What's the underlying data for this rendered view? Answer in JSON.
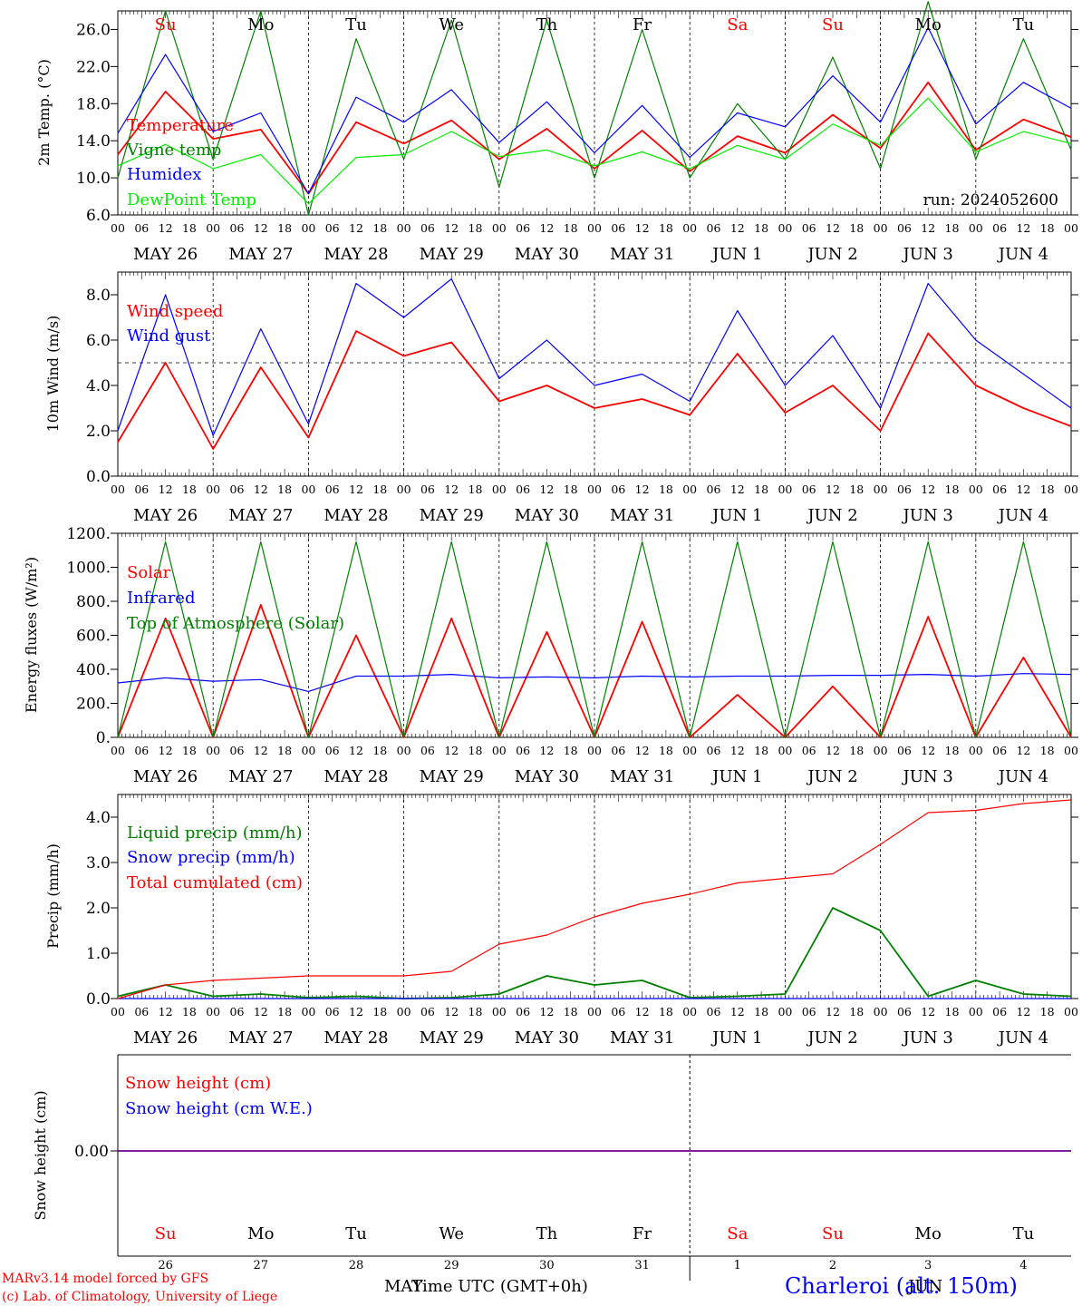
{
  "chart_data": [
    {
      "type": "line",
      "ylabel": "2m Temp. (°C)",
      "ylim": [
        6.0,
        28.0
      ],
      "yticks": [
        "6.0",
        "10.0",
        "14.0",
        "18.0",
        "22.0",
        "26.0"
      ],
      "annotation": "run: 2024052600",
      "legend": "top-left",
      "x_hours": [
        0,
        12,
        24,
        36,
        48,
        60,
        72,
        84,
        96,
        108,
        120,
        132,
        144,
        156,
        168,
        180,
        192,
        204,
        216,
        228,
        240
      ],
      "series": [
        {
          "name": "Temperature",
          "values": [
            12.5,
            19.3,
            14.2,
            15.2,
            8.3,
            16.0,
            13.7,
            16.2,
            12.0,
            15.3,
            11.0,
            15.1,
            10.7,
            14.5,
            12.7,
            16.8,
            13.2,
            20.3,
            13.0,
            16.3,
            14.4
          ]
        },
        {
          "name": "Vigne temp",
          "values": [
            10.0,
            28.0,
            12.0,
            28.0,
            6.0,
            25.0,
            12.0,
            27.0,
            9.0,
            27.0,
            10.0,
            26.0,
            10.0,
            18.0,
            12.0,
            23.0,
            11.0,
            29.0,
            12.0,
            25.0,
            13.0
          ]
        },
        {
          "name": "Humidex",
          "values": [
            14.8,
            23.3,
            15.0,
            17.0,
            8.3,
            18.7,
            16.0,
            19.5,
            13.8,
            18.2,
            12.7,
            17.8,
            12.2,
            17.0,
            15.5,
            21.0,
            16.0,
            26.2,
            15.8,
            20.3,
            17.5
          ]
        },
        {
          "name": "DewPoint Temp",
          "values": [
            11.3,
            13.6,
            11.0,
            12.5,
            7.2,
            12.2,
            12.5,
            15.0,
            12.3,
            13.0,
            11.3,
            12.8,
            11.0,
            13.5,
            12.0,
            15.8,
            13.5,
            18.6,
            12.8,
            15.0,
            13.7
          ]
        }
      ]
    },
    {
      "type": "line",
      "ylabel": "10m Wind (m/s)",
      "ylim": [
        0.0,
        9.0
      ],
      "yticks": [
        "0.0",
        "2.0",
        "4.0",
        "6.0",
        "8.0"
      ],
      "reference_line": 5.0,
      "legend": "top-left",
      "x_hours": [
        0,
        12,
        24,
        36,
        48,
        60,
        72,
        84,
        96,
        108,
        120,
        132,
        144,
        156,
        168,
        180,
        192,
        204,
        216,
        228,
        240
      ],
      "series": [
        {
          "name": "Wind speed",
          "values": [
            1.5,
            5.0,
            1.2,
            4.8,
            1.7,
            6.4,
            5.3,
            5.9,
            3.3,
            4.0,
            3.0,
            3.4,
            2.7,
            5.4,
            2.8,
            4.0,
            2.0,
            6.3,
            4.0,
            3.0,
            2.2
          ]
        },
        {
          "name": "Wind gust",
          "values": [
            2.0,
            8.0,
            1.8,
            6.5,
            2.3,
            8.5,
            7.0,
            8.7,
            4.3,
            6.0,
            4.0,
            4.5,
            3.3,
            7.3,
            4.0,
            6.2,
            3.0,
            8.5,
            6.0,
            4.5,
            3.0
          ]
        }
      ]
    },
    {
      "type": "line",
      "ylabel": "Energy fluxes (W/m²)",
      "ylim": [
        0,
        1200
      ],
      "yticks": [
        "0.",
        "200.",
        "400.",
        "600.",
        "800.",
        "1000.",
        "1200."
      ],
      "legend": "top-left",
      "x_hours": [
        0,
        12,
        24,
        36,
        48,
        60,
        72,
        84,
        96,
        108,
        120,
        132,
        144,
        156,
        168,
        180,
        192,
        204,
        216,
        228,
        240
      ],
      "series": [
        {
          "name": "Solar",
          "values": [
            0,
            700,
            0,
            780,
            0,
            600,
            0,
            700,
            0,
            620,
            0,
            680,
            0,
            250,
            0,
            300,
            0,
            710,
            0,
            470,
            0
          ]
        },
        {
          "name": "Infrared",
          "values": [
            320,
            350,
            330,
            340,
            270,
            360,
            360,
            370,
            350,
            355,
            350,
            360,
            355,
            360,
            360,
            365,
            365,
            370,
            360,
            375,
            370
          ]
        },
        {
          "name": "Top of Atmosphere (Solar)",
          "values": [
            0,
            1150,
            0,
            1150,
            0,
            1150,
            0,
            1150,
            0,
            1150,
            0,
            1150,
            0,
            1150,
            0,
            1150,
            0,
            1150,
            0,
            1150,
            0
          ]
        }
      ]
    },
    {
      "type": "line",
      "ylabel": "Precip (mm/h)",
      "ylim": [
        0.0,
        4.5
      ],
      "yticks": [
        "0.0",
        "1.0",
        "2.0",
        "3.0",
        "4.0"
      ],
      "legend": "top-left",
      "x_hours": [
        0,
        12,
        24,
        36,
        48,
        60,
        72,
        84,
        96,
        108,
        120,
        132,
        144,
        156,
        168,
        180,
        192,
        204,
        216,
        228,
        240
      ],
      "series": [
        {
          "name": "Liquid precip (mm/h)",
          "values": [
            0.05,
            0.3,
            0.05,
            0.1,
            0.02,
            0.05,
            0.0,
            0.02,
            0.1,
            0.5,
            0.3,
            0.4,
            0.02,
            0.05,
            0.1,
            2.0,
            1.5,
            0.05,
            0.4,
            0.1,
            0.05
          ]
        },
        {
          "name": "Snow precip (mm/h)",
          "values": [
            0,
            0,
            0,
            0,
            0,
            0,
            0,
            0,
            0,
            0,
            0,
            0,
            0,
            0,
            0,
            0,
            0,
            0,
            0,
            0,
            0
          ]
        },
        {
          "name": "Total cumulated (cm)",
          "values": [
            0.0,
            0.3,
            0.4,
            0.45,
            0.5,
            0.5,
            0.5,
            0.6,
            1.2,
            1.4,
            1.8,
            2.1,
            2.3,
            2.55,
            2.65,
            2.75,
            3.4,
            4.1,
            4.15,
            4.3,
            4.38
          ]
        }
      ]
    },
    {
      "type": "line",
      "ylabel": "Snow height (cm)",
      "ytick": "0.00",
      "legend": "top-left",
      "series": [
        {
          "name": "Snow height (cm)",
          "values": [
            0,
            0
          ]
        },
        {
          "name": "Snow height (cm W.E.)",
          "values": [
            0,
            0
          ]
        }
      ]
    }
  ],
  "x_axis": {
    "hour_ticks": [
      "00",
      "06",
      "12",
      "18"
    ],
    "dates": [
      "MAY 26",
      "MAY 27",
      "MAY 28",
      "MAY 29",
      "MAY 30",
      "MAY 31",
      "JUN  1",
      "JUN  2",
      "JUN  3",
      "JUN  4"
    ],
    "weekdays": [
      "Su",
      "Mo",
      "Tu",
      "We",
      "Th",
      "Fr",
      "Sa",
      "Su",
      "Mo",
      "Tu"
    ],
    "day_numbers": [
      "26",
      "27",
      "28",
      "29",
      "30",
      "31",
      "1",
      "2",
      "3",
      "4"
    ],
    "month_left": "MAY",
    "month_right": "JUN",
    "xlabel": "Time UTC (GMT+0h)"
  },
  "footer": {
    "credit_1": "MARv3.14 model forced by GFS",
    "credit_2": "(c) Lab. of Climatology, University of Liege",
    "station": "Charleroi (alt. 150m)"
  },
  "colors": {
    "red": "#ff0000",
    "green": "#008000",
    "blue": "#0000ff",
    "light_green": "#00ee00",
    "purple": "#800080",
    "weekend": "#ff0000"
  }
}
